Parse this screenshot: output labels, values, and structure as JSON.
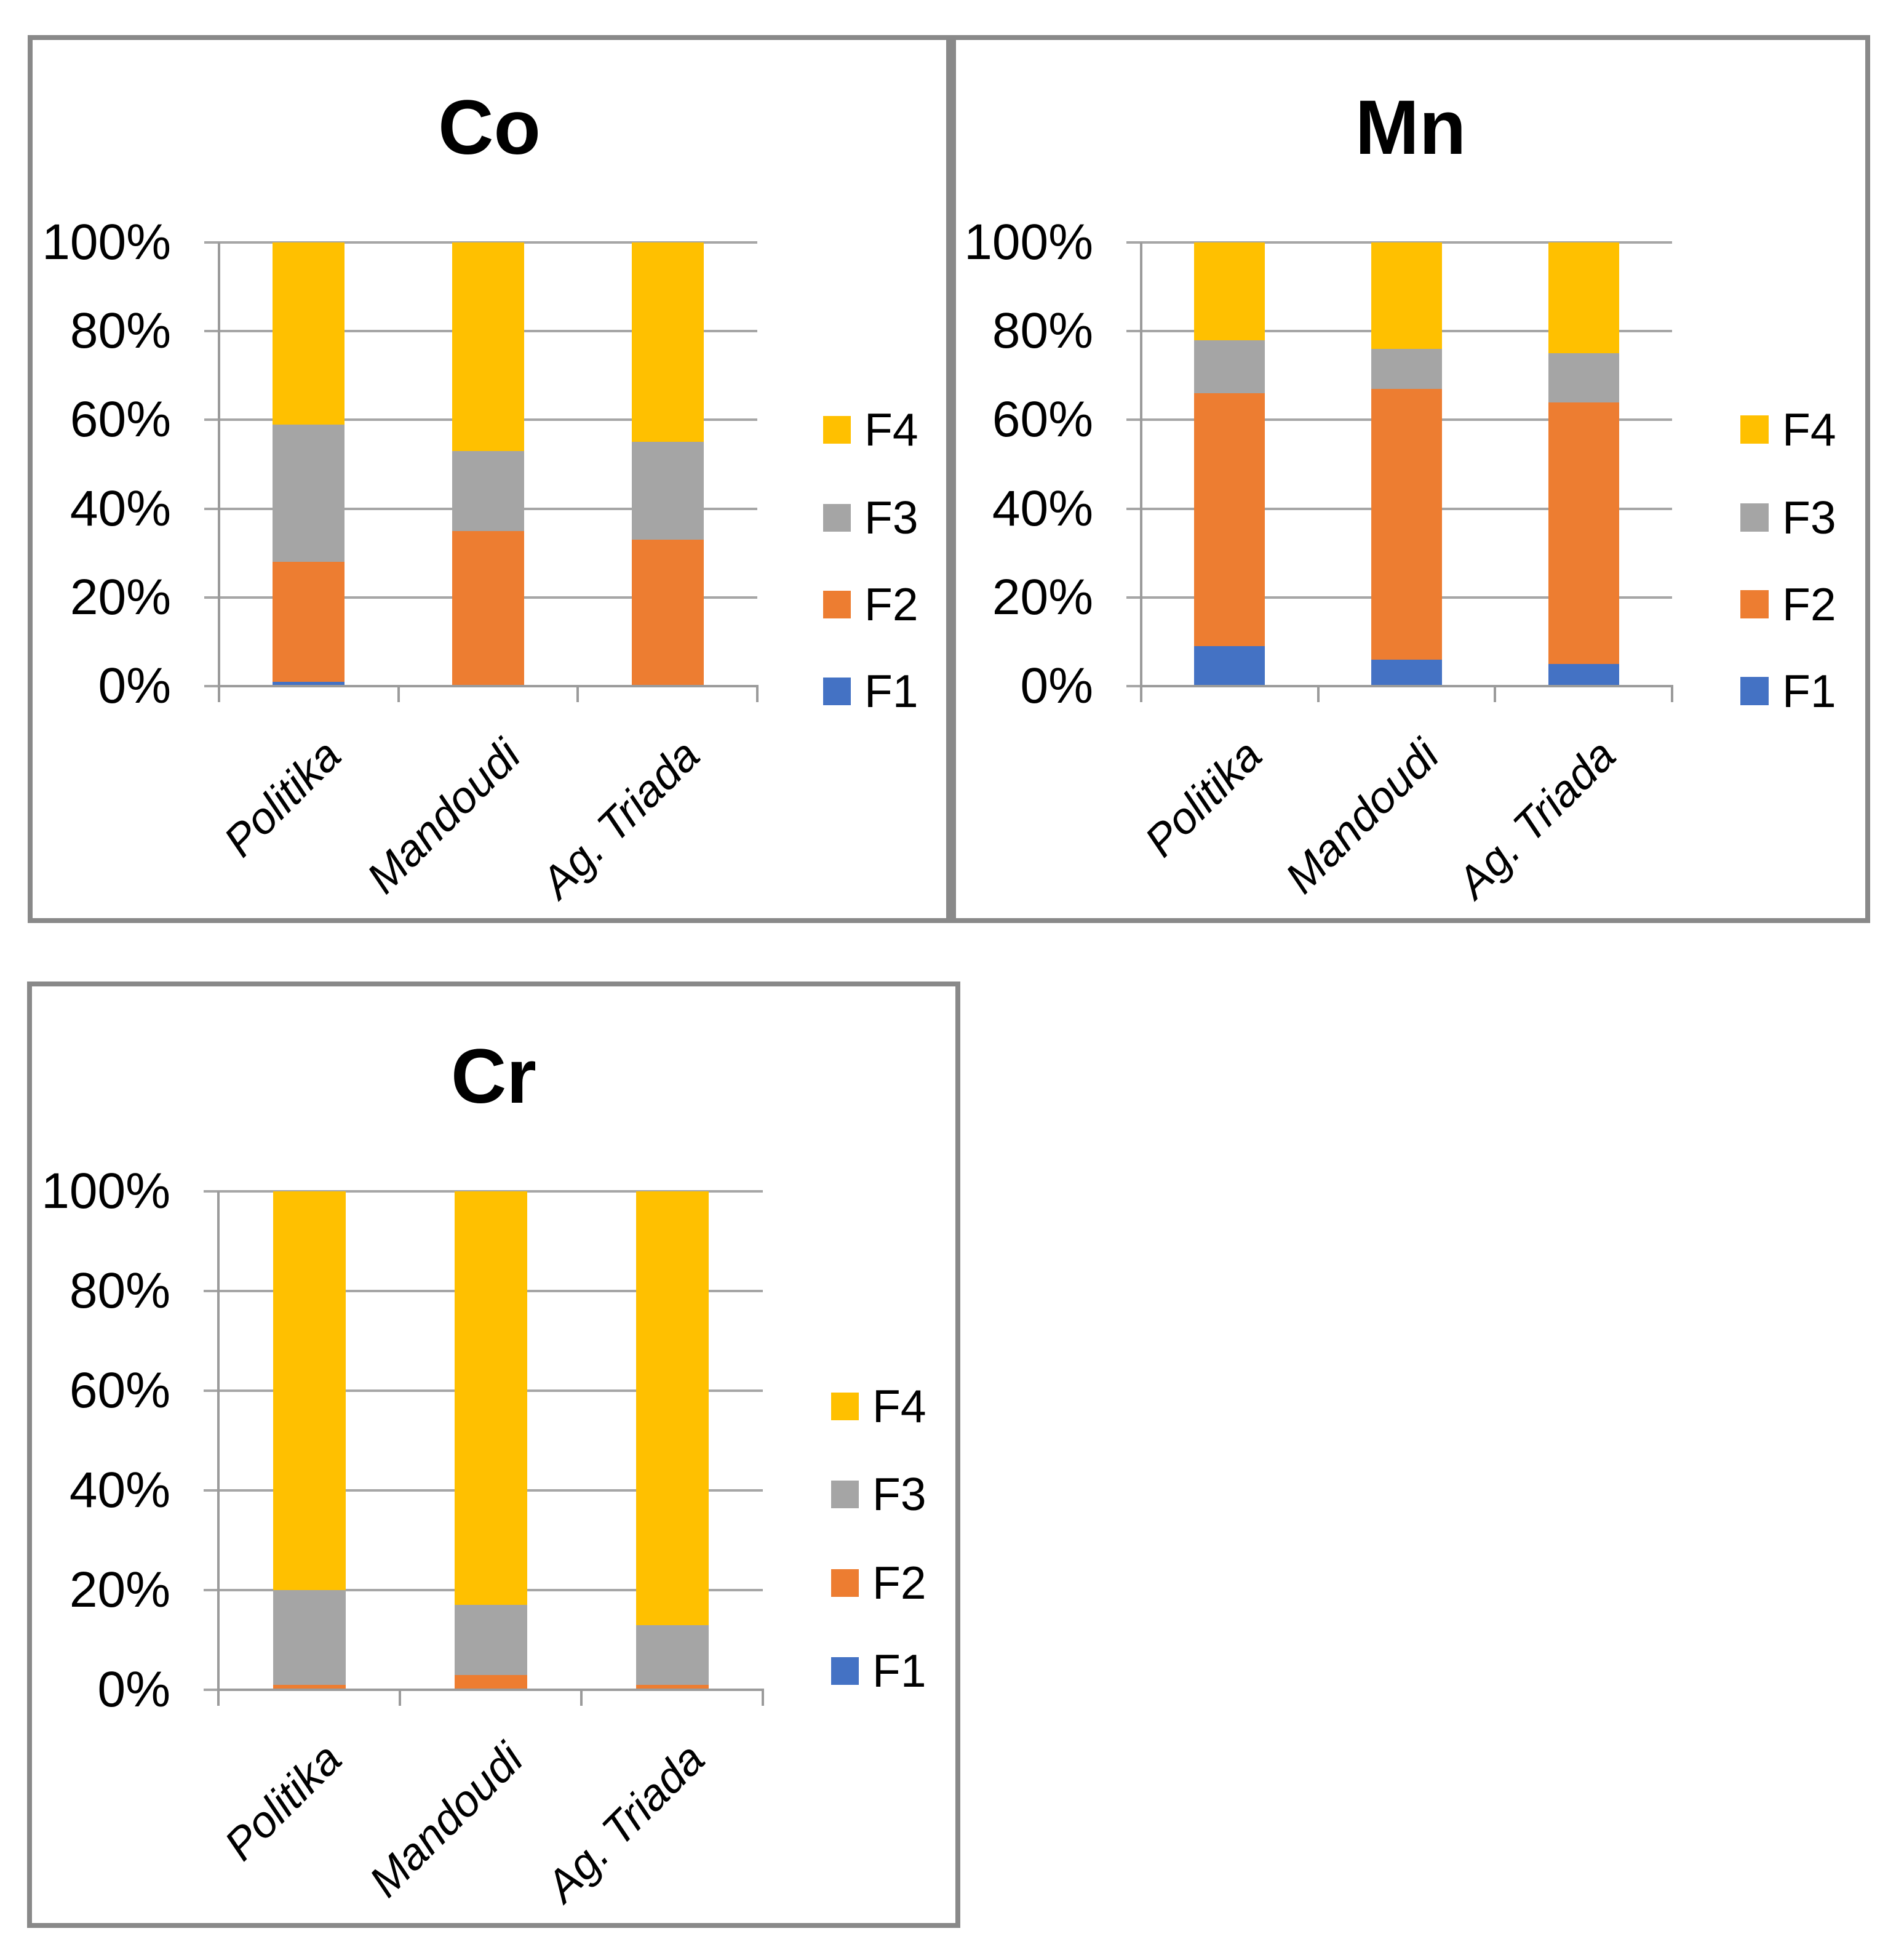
{
  "colors": {
    "F1": "#4472C4",
    "F2": "#ED7D31",
    "F3": "#A5A5A5",
    "F4": "#FFC000",
    "gridline": "#A6A6A6",
    "axis": "#9B9B9B",
    "panel_border": "#898989",
    "text": "#000000"
  },
  "chart_data": [
    {
      "type": "bar",
      "stacked": true,
      "percent": true,
      "title": "Co",
      "categories": [
        "Politika",
        "Mandoudi",
        "Ag. Triada"
      ],
      "series": [
        {
          "name": "F1",
          "color": "#4472C4",
          "values": [
            1,
            0,
            0
          ]
        },
        {
          "name": "F2",
          "color": "#ED7D31",
          "values": [
            27,
            35,
            33
          ]
        },
        {
          "name": "F3",
          "color": "#A5A5A5",
          "values": [
            31,
            18,
            22
          ]
        },
        {
          "name": "F4",
          "color": "#FFC000",
          "values": [
            41,
            47,
            45
          ]
        }
      ],
      "xlabel": "",
      "ylabel": "",
      "ylim": [
        0,
        100
      ],
      "ytick_labels": [
        "0%",
        "20%",
        "40%",
        "60%",
        "80%",
        "100%"
      ],
      "grid": true,
      "legend_position": "right",
      "legend_order": [
        "F4",
        "F3",
        "F2",
        "F1"
      ]
    },
    {
      "type": "bar",
      "stacked": true,
      "percent": true,
      "title": "Mn",
      "categories": [
        "Politika",
        "Mandoudi",
        "Ag. Triada"
      ],
      "series": [
        {
          "name": "F1",
          "color": "#4472C4",
          "values": [
            9,
            6,
            5
          ]
        },
        {
          "name": "F2",
          "color": "#ED7D31",
          "values": [
            57,
            61,
            59
          ]
        },
        {
          "name": "F3",
          "color": "#A5A5A5",
          "values": [
            12,
            9,
            11
          ]
        },
        {
          "name": "F4",
          "color": "#FFC000",
          "values": [
            22,
            24,
            25
          ]
        }
      ],
      "xlabel": "",
      "ylabel": "",
      "ylim": [
        0,
        100
      ],
      "ytick_labels": [
        "0%",
        "20%",
        "40%",
        "60%",
        "80%",
        "100%"
      ],
      "grid": true,
      "legend_position": "right",
      "legend_order": [
        "F4",
        "F3",
        "F2",
        "F1"
      ]
    },
    {
      "type": "bar",
      "stacked": true,
      "percent": true,
      "title": "Cr",
      "categories": [
        "Politika",
        "Mandoudi",
        "Ag. Triada"
      ],
      "series": [
        {
          "name": "F1",
          "color": "#4472C4",
          "values": [
            0,
            0,
            0
          ]
        },
        {
          "name": "F2",
          "color": "#ED7D31",
          "values": [
            1,
            3,
            1
          ]
        },
        {
          "name": "F3",
          "color": "#A5A5A5",
          "values": [
            19,
            14,
            12
          ]
        },
        {
          "name": "F4",
          "color": "#FFC000",
          "values": [
            80,
            83,
            87
          ]
        }
      ],
      "xlabel": "",
      "ylabel": "",
      "ylim": [
        0,
        100
      ],
      "ytick_labels": [
        "0%",
        "20%",
        "40%",
        "60%",
        "80%",
        "100%"
      ],
      "grid": true,
      "legend_position": "right",
      "legend_order": [
        "F4",
        "F3",
        "F2",
        "F1"
      ]
    }
  ]
}
